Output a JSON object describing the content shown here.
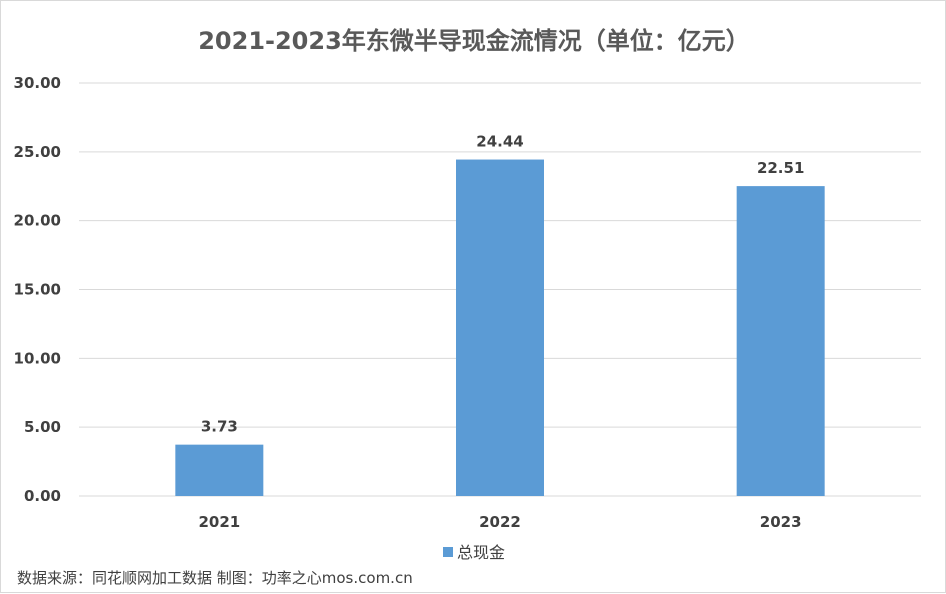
{
  "chart_data": {
    "type": "bar",
    "title": "2021-2023年东微半导现金流情况（单位：亿元）",
    "categories": [
      "2021",
      "2022",
      "2023"
    ],
    "series": [
      {
        "name": "总现金",
        "values": [
          3.73,
          24.44,
          22.51
        ],
        "color": "#5B9BD5",
        "data_labels": [
          "3.73",
          "24.44",
          "22.51"
        ]
      }
    ],
    "ylim": [
      0,
      30
    ],
    "yticks": [
      0,
      5,
      10,
      15,
      20,
      25,
      30
    ],
    "ytick_labels": [
      "0.00",
      "5.00",
      "10.00",
      "15.00",
      "20.00",
      "25.00",
      "30.00"
    ],
    "grid": true,
    "legend_position": "bottom"
  },
  "footer": {
    "source": "数据来源：同花顺网加工数据 制图：功率之心mos.com.cn"
  }
}
